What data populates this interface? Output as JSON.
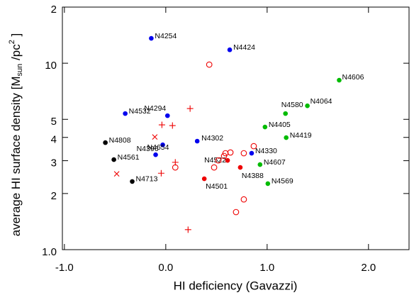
{
  "chart_data": {
    "type": "scatter",
    "x_label": "HI deficiency (Gavazzi)",
    "y_label": {
      "text": "average HI surface density [M",
      "sub": "sun",
      "mid": " /pc",
      "sup": "2",
      "end": " ]"
    },
    "xlim": [
      -1.02,
      2.4
    ],
    "ylim": [
      1,
      20
    ],
    "log_y": true,
    "xticks": [
      {
        "value": -1,
        "label": "-1.0"
      },
      {
        "value": 0,
        "label": "0.0"
      },
      {
        "value": 1,
        "label": "1.0"
      },
      {
        "value": 2,
        "label": "2.0"
      }
    ],
    "yticks": [
      {
        "value": 1,
        "label": "1.0"
      },
      2,
      3,
      4,
      5,
      10,
      {
        "value": 20,
        "label": "2"
      }
    ],
    "series": [
      {
        "color": "#0000ee",
        "marker": "dot",
        "x": [
          -0.143,
          0.631,
          -0.4,
          0.017,
          0.31,
          -0.03,
          -0.1,
          0.847
        ],
        "values": [
          13.6,
          11.8,
          5.37,
          5.23,
          3.82,
          3.65,
          3.23,
          3.29
        ],
        "labels": [
          "N4254",
          "N4424",
          "N4532",
          "N4294",
          "N4302",
          "N4396",
          "N4654",
          "N4330"
        ]
      },
      {
        "color": "#000000",
        "marker": "dot",
        "x": [
          -0.596,
          -0.512,
          -0.331
        ],
        "values": [
          3.75,
          3.04,
          2.32
        ],
        "labels": [
          "N4808",
          "N4561",
          "N4713"
        ]
      },
      {
        "color": "#00bb00",
        "marker": "dot",
        "x": [
          1.711,
          1.397,
          1.181,
          0.979,
          1.188,
          0.93,
          1.007
        ],
        "values": [
          8.11,
          5.91,
          5.37,
          4.55,
          3.99,
          2.86,
          2.26
        ],
        "labels": [
          "N4606",
          "N4064",
          "N4580",
          "N4405",
          "N4419",
          "N4607",
          "N4569"
        ]
      },
      {
        "color": "#ee0000",
        "marker": "dot",
        "x": [
          0.61,
          0.735,
          0.38
        ],
        "values": [
          3.01,
          2.76,
          2.4
        ],
        "labels": [
          "N4522",
          "N4388",
          "N4501"
        ]
      },
      {
        "color": "#ee0000",
        "marker": "circle",
        "x": [
          0.429,
          0.589,
          0.638,
          0.477,
          0.519,
          0.77,
          0.868,
          0.094,
          0.77,
          0.693,
          0.575
        ],
        "values": [
          9.83,
          3.29,
          3.32,
          2.76,
          3.01,
          3.29,
          3.59,
          2.76,
          1.86,
          1.59,
          3.18
        ]
      },
      {
        "color": "#ee0000",
        "marker": "plus",
        "x": [
          0.24,
          -0.038,
          0.066,
          0.094,
          -0.045,
          0.22
        ],
        "values": [
          5.71,
          4.67,
          4.63,
          2.94,
          2.57,
          1.28
        ]
      },
      {
        "color": "#ee0000",
        "marker": "cross",
        "x": [
          -0.108,
          -0.484
        ],
        "values": [
          4.02,
          2.55
        ]
      }
    ]
  }
}
